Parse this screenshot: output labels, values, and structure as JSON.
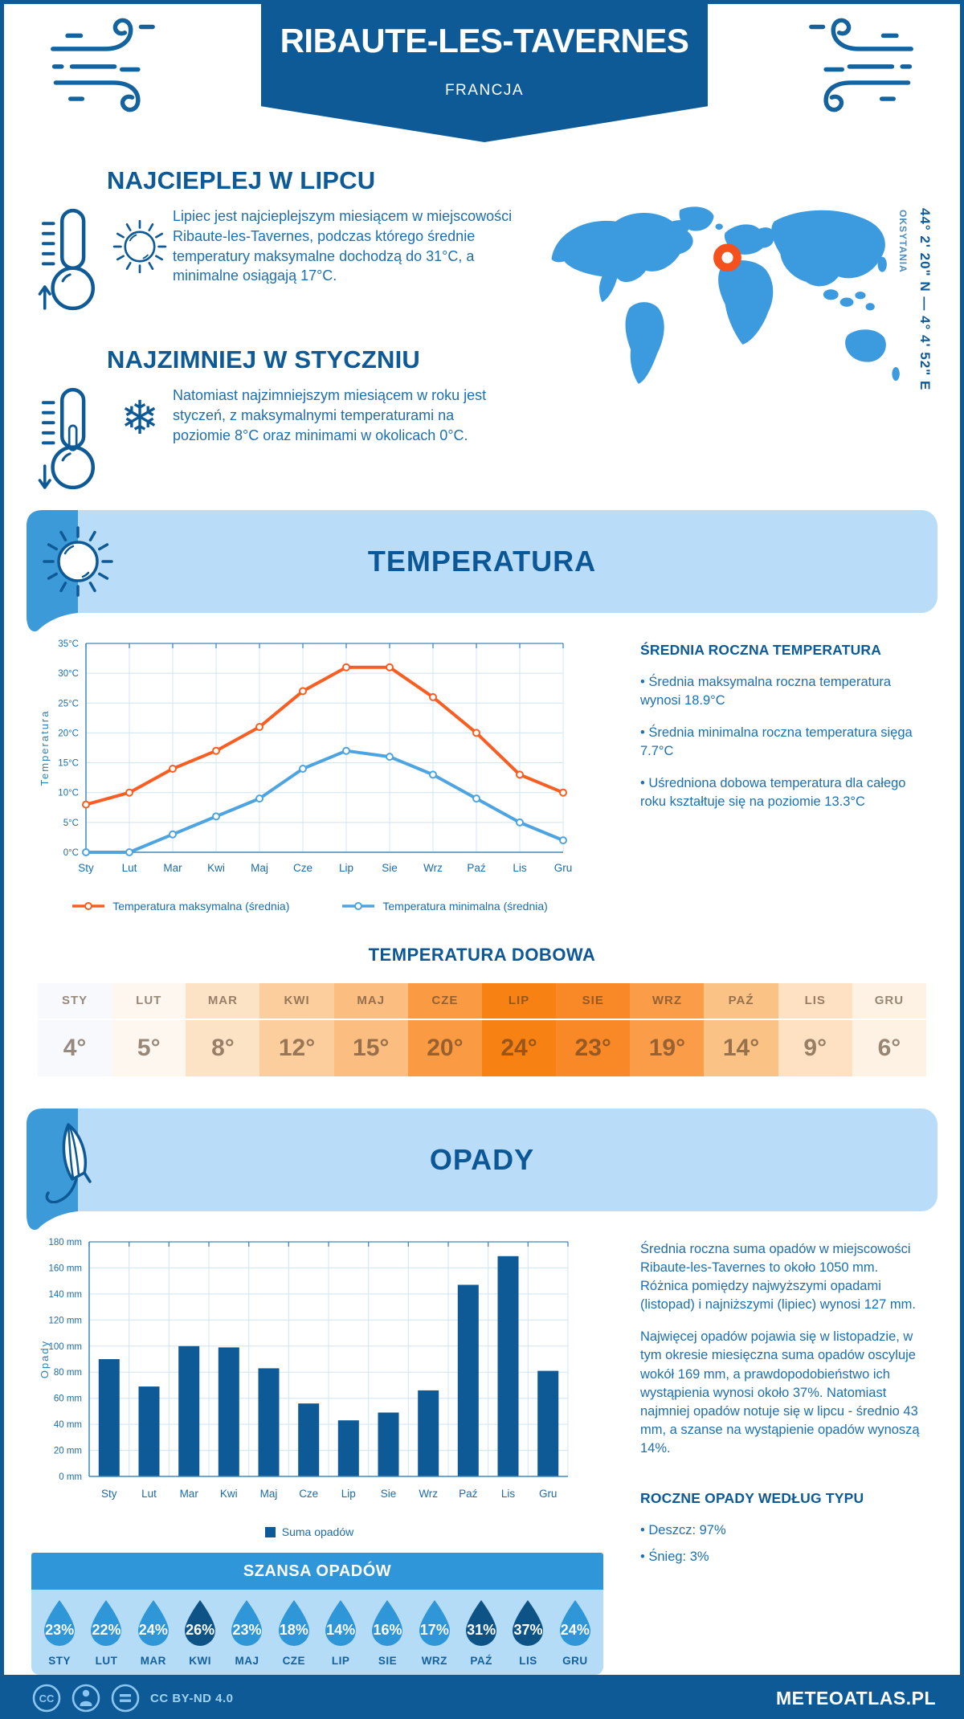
{
  "colors": {
    "primary": "#0d5a96",
    "accent_blue": "#3c9ad9",
    "band_light_blue": "#b9dcf9",
    "szansa_header_blue": "#2e96d9",
    "max_temp_orange": "#f85e21",
    "min_temp_blue": "#4da4e0",
    "marker_orange": "#f4511e",
    "bar_blue": "#0d5a96"
  },
  "header": {
    "title": "RIBAUTE-LES-TAVERNES",
    "subtitle": "FRANCJA"
  },
  "map": {
    "region": "OKSYTANIA",
    "coordinates": "44° 2' 20\" N — 4° 4' 52\" E"
  },
  "facts": {
    "warm_title": "NAJCIEPLEJ W LIPCU",
    "warm_text": "Lipiec jest najcieplejszym miesiącem w miejscowości Ribaute-les-Tavernes, podczas którego średnie temperatury maksymalne dochodzą do 31°C, a minimalne osiągają 17°C.",
    "cold_title": "NAJZIMNIEJ W STYCZNIU",
    "cold_text": "Natomiast najzimniejszym miesiącem w roku jest styczeń, z maksymalnymi temperaturami na poziomie 8°C oraz minimami w okolicach 0°C."
  },
  "temperature": {
    "band_title": "TEMPERATURA",
    "aside_title": "ŚREDNIA ROCZNA TEMPERATURA",
    "aside_bullets": [
      "• Średnia maksymalna roczna temperatura wynosi 18.9°C",
      "• Średnia minimalna roczna temperatura sięga 7.7°C",
      "• Uśredniona dobowa temperatura dla całego roku kształtuje się na poziomie 13.3°C"
    ],
    "daily_title": "TEMPERATURA DOBOWA"
  },
  "precipitation": {
    "band_title": "OPADY",
    "aside_paragraphs": [
      "Średnia roczna suma opadów w miejscowości Ribaute-les-Tavernes to około 1050 mm. Różnica pomiędzy najwyższymi opadami (listopad) i najniższymi (lipiec) wynosi 127 mm.",
      "Najwięcej opadów pojawia się w listopadzie, w tym okresie miesięczna suma opadów oscyluje wokół 169 mm, a prawdopodobieństwo ich wystąpienia wynosi około 37%. Natomiast najmniej opadów notuje się w lipcu - średnio 43 mm, a szanse na wystąpienie opadów wynoszą 14%.",
      "ROCZNE OPADY WEDŁUG TYPU"
    ],
    "type_title": "ROCZNE OPADY WEDŁUG TYPU",
    "type_bullets": [
      "• Deszcz: 97%",
      "• Śnieg: 3%"
    ],
    "szansa_title": "SZANSA OPADÓW"
  },
  "footer": {
    "license": "CC BY-ND 4.0",
    "brand": "METEOATLAS.PL"
  },
  "chart_data": [
    {
      "type": "line",
      "title": "Temperatura — średnie miesięczne",
      "categories": [
        "Sty",
        "Lut",
        "Mar",
        "Kwi",
        "Maj",
        "Cze",
        "Lip",
        "Sie",
        "Wrz",
        "Paź",
        "Lis",
        "Gru"
      ],
      "series": [
        {
          "name": "Temperatura maksymalna (średnia)",
          "color": "#f85e21",
          "values": [
            8,
            10,
            14,
            17,
            21,
            27,
            31,
            31,
            26,
            20,
            13,
            10
          ]
        },
        {
          "name": "Temperatura minimalna (średnia)",
          "color": "#4da4e0",
          "values": [
            0,
            0,
            3,
            6,
            9,
            14,
            17,
            16,
            13,
            9,
            5,
            2
          ]
        }
      ],
      "xlabel": "",
      "ylabel": "Temperatura",
      "ylim": [
        0,
        35
      ],
      "ytick_step": 5,
      "ytick_suffix": "°C",
      "grid": true,
      "legend_position": "bottom"
    },
    {
      "type": "bar",
      "title": "Opady — suma miesięczna",
      "categories": [
        "Sty",
        "Lut",
        "Mar",
        "Kwi",
        "Maj",
        "Cze",
        "Lip",
        "Sie",
        "Wrz",
        "Paź",
        "Lis",
        "Gru"
      ],
      "values": [
        90,
        69,
        100,
        99,
        83,
        56,
        43,
        49,
        66,
        147,
        169,
        81
      ],
      "color": "#0d5a96",
      "legend": [
        "Suma opadów"
      ],
      "xlabel": "",
      "ylabel": "Opady",
      "ylim": [
        0,
        180
      ],
      "ytick_step": 20,
      "ytick_suffix": " mm",
      "grid": true,
      "legend_position": "bottom"
    },
    {
      "type": "table",
      "title": "TEMPERATURA DOBOWA",
      "months": [
        "STY",
        "LUT",
        "MAR",
        "KWI",
        "MAJ",
        "CZE",
        "LIP",
        "SIE",
        "WRZ",
        "PAŹ",
        "LIS",
        "GRU"
      ],
      "values": [
        "4°",
        "5°",
        "8°",
        "12°",
        "15°",
        "20°",
        "24°",
        "23°",
        "19°",
        "14°",
        "9°",
        "6°"
      ],
      "cell_colors": [
        "#f7f9fc",
        "#fdf7f0",
        "#fde3c6",
        "#fcce9e",
        "#fbbd80",
        "#fa9a42",
        "#f88114",
        "#f98826",
        "#fa9c48",
        "#fbc286",
        "#fde1c2",
        "#fdf2e4"
      ]
    },
    {
      "type": "table",
      "title": "SZANSA OPADÓW",
      "months": [
        "STY",
        "LUT",
        "MAR",
        "KWI",
        "MAJ",
        "CZE",
        "LIP",
        "SIE",
        "WRZ",
        "PAŹ",
        "LIS",
        "GRU"
      ],
      "values": [
        "23%",
        "22%",
        "24%",
        "26%",
        "23%",
        "18%",
        "14%",
        "16%",
        "17%",
        "31%",
        "37%",
        "24%"
      ],
      "color": "#2f96d8",
      "dark_color": "#0e5386",
      "dark_indices": [
        3,
        9,
        10
      ]
    }
  ]
}
